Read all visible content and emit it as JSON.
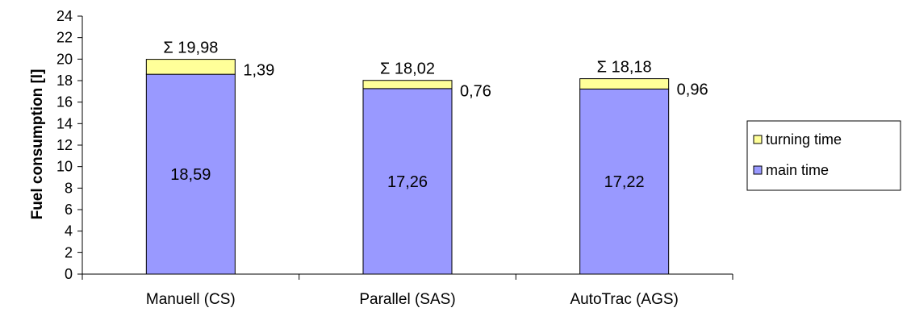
{
  "chart_data": {
    "type": "bar",
    "stacked": true,
    "categories": [
      "Manuell (CS)",
      "Parallel (SAS)",
      "AutoTrac (AGS)"
    ],
    "series": [
      {
        "name": "main time",
        "values": [
          18.59,
          17.26,
          17.22
        ],
        "labels": [
          "18,59",
          "17,26",
          "17,22"
        ],
        "color": "#9999ff"
      },
      {
        "name": "turning time",
        "values": [
          1.39,
          0.76,
          0.96
        ],
        "labels": [
          "1,39",
          "0,76",
          "0,96"
        ],
        "color": "#ffff99"
      }
    ],
    "totals": [
      "Σ 19,98",
      "Σ 18,02",
      "Σ 18,18"
    ],
    "ylabel": "Fuel consumption [l]",
    "xlabel": "",
    "title": "",
    "ylim": [
      0,
      24
    ],
    "yticks": [
      0,
      2,
      4,
      6,
      8,
      10,
      12,
      14,
      16,
      18,
      20,
      22,
      24
    ],
    "grid": false,
    "legend": {
      "placement": "right",
      "entries": [
        "turning time",
        "main time"
      ]
    }
  }
}
